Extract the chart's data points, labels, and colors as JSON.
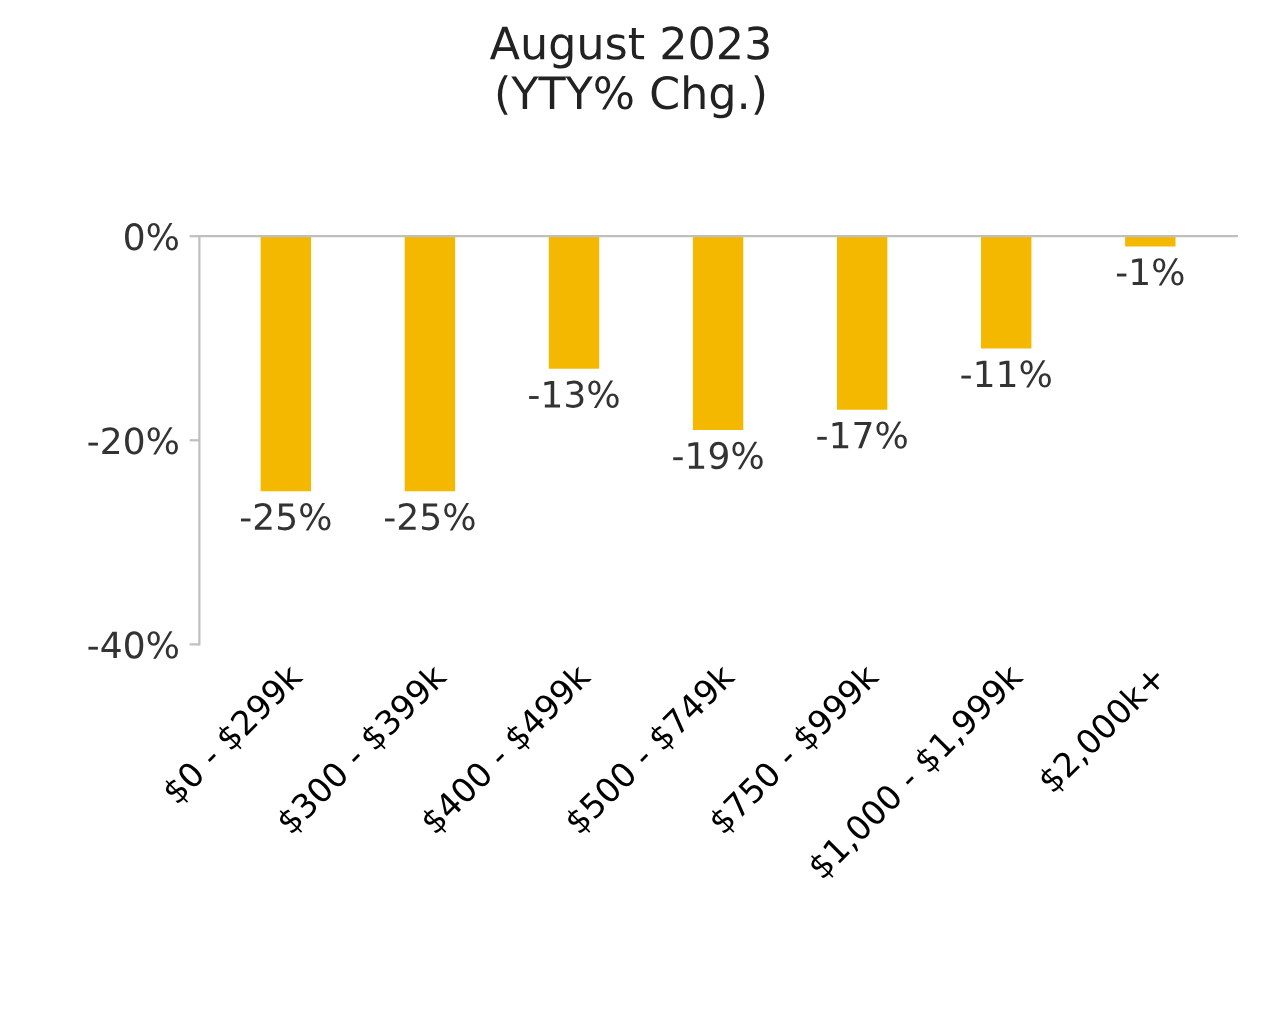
{
  "chart_data": {
    "type": "bar",
    "title": "August 2023\n(YTY% Chg.)",
    "categories": [
      "$0 - $299k",
      "$300 - $399k",
      "$400 - $499k",
      "$500 - $749k",
      "$750 - $999k",
      "$1,000 - $1,999k",
      "$2,000k+"
    ],
    "values": [
      -25,
      -25,
      -13,
      -19,
      -17,
      -11,
      -1
    ],
    "value_labels": [
      "-25%",
      "-25%",
      "-13%",
      "-19%",
      "-17%",
      "-11%",
      "-1%"
    ],
    "color": "#f5b800",
    "ylim": [
      -40,
      0
    ],
    "yticks": [
      {
        "value": 0,
        "label": "0%"
      },
      {
        "value": -20,
        "label": "-20%"
      },
      {
        "value": -40,
        "label": "-40%"
      }
    ],
    "grid": false,
    "legend": false
  }
}
